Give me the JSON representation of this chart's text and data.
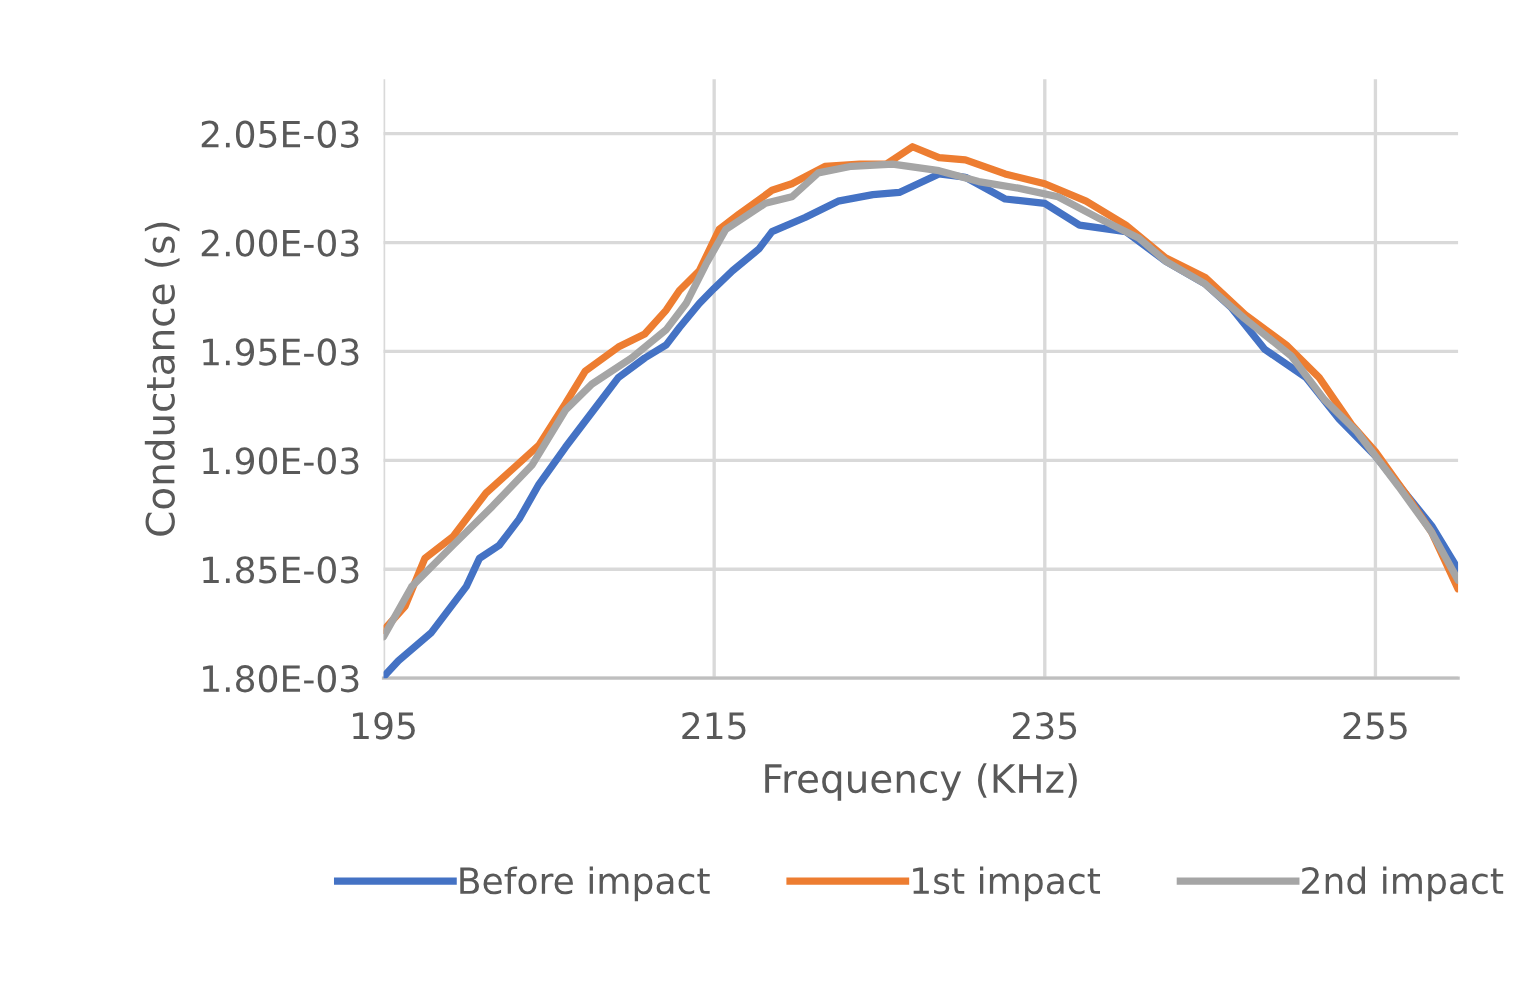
{
  "chart_data": {
    "type": "line",
    "xlabel": "Frequency (KHz)",
    "ylabel": "Conductance (s)",
    "xlim": [
      195,
      260
    ],
    "xticks": [
      195,
      215,
      235,
      255
    ],
    "ylim": [
      0.0018,
      0.002075
    ],
    "yticks": [
      {
        "value": 0.0018,
        "label": "1.80E-03"
      },
      {
        "value": 0.00185,
        "label": "1.85E-03"
      },
      {
        "value": 0.0019,
        "label": "1.90E-03"
      },
      {
        "value": 0.00195,
        "label": "1.95E-03"
      },
      {
        "value": 0.002,
        "label": "2.00E-03"
      },
      {
        "value": 0.00205,
        "label": "2.05E-03"
      }
    ],
    "grid": true,
    "legend": "bottom",
    "marker": "none",
    "line_style": "solid",
    "series": [
      {
        "name": "Before impact",
        "color": "#4472c4",
        "x": [
          195,
          195.9,
          197.9,
          200.0,
          200.8,
          202.0,
          203.2,
          204.4,
          206.0,
          208.0,
          209.2,
          210.8,
          212.1,
          212.9,
          214.1,
          215.0,
          216.1,
          217.7,
          218.5,
          220.5,
          222.5,
          224.6,
          226.2,
          228.6,
          230.2,
          232.6,
          235.0,
          237.1,
          239.9,
          242.3,
          244.7,
          246.3,
          248.3,
          250.8,
          252.8,
          255.0,
          256.8,
          258.4,
          260
        ],
        "values": [
          0.0018006,
          0.001808,
          0.001821,
          0.001842,
          0.001855,
          0.001861,
          0.001873,
          0.001889,
          0.001906,
          0.001926,
          0.001938,
          0.001947,
          0.001953,
          0.001961,
          0.001972,
          0.001979,
          0.001987,
          0.001997,
          0.002005,
          0.0020115,
          0.002019,
          0.002022,
          0.002023,
          0.0020315,
          0.00203,
          0.00202,
          0.002018,
          0.002008,
          0.002005,
          0.0019915,
          0.001981,
          0.00197,
          0.001951,
          0.001938,
          0.001919,
          0.001902,
          0.001885,
          0.00187,
          0.00185
        ]
      },
      {
        "name": "1st impact",
        "color": "#ed7d31",
        "x": [
          195,
          196.3,
          197.5,
          199.2,
          201.2,
          202.8,
          204.4,
          206.0,
          207.2,
          209.2,
          210.8,
          212.1,
          212.9,
          214.1,
          215.3,
          216.5,
          218.5,
          219.7,
          221.7,
          223.8,
          225.4,
          227.0,
          228.6,
          230.2,
          232.6,
          235.0,
          237.5,
          239.9,
          242.3,
          244.7,
          247.1,
          249.6,
          251.6,
          253.6,
          255.0,
          256.8,
          258.4,
          260
        ],
        "values": [
          0.001822,
          0.001833,
          0.001855,
          0.001865,
          0.001885,
          0.001896,
          0.001907,
          0.001926,
          0.001941,
          0.001952,
          0.001958,
          0.001969,
          0.001978,
          0.001987,
          0.002006,
          0.002013,
          0.002024,
          0.002027,
          0.002035,
          0.002036,
          0.002036,
          0.002044,
          0.002039,
          0.002038,
          0.0020315,
          0.002027,
          0.002019,
          0.002008,
          0.001993,
          0.001984,
          0.001967,
          0.001953,
          0.001938,
          0.001916,
          0.001904,
          0.001885,
          0.001867,
          0.001841
        ]
      },
      {
        "name": "2nd impact",
        "color": "#a5a5a5",
        "x": [
          195,
          196.7,
          199.2,
          201.6,
          204.0,
          206.0,
          207.6,
          210.0,
          212.1,
          213.3,
          214.5,
          215.7,
          216.5,
          218.1,
          219.7,
          221.3,
          223.3,
          225.8,
          228.6,
          231.0,
          233.4,
          235.8,
          238.3,
          240.7,
          242.3,
          244.7,
          247.1,
          249.9,
          251.9,
          253.9,
          256.4,
          258.4,
          260
        ],
        "values": [
          0.001819,
          0.001842,
          0.001861,
          0.001879,
          0.001898,
          0.001923,
          0.001935,
          0.001947,
          0.00196,
          0.001972,
          0.00199,
          0.002006,
          0.00201,
          0.002018,
          0.002021,
          0.002032,
          0.002035,
          0.002036,
          0.002033,
          0.002028,
          0.002025,
          0.002021,
          0.002011,
          0.002002,
          0.0019915,
          0.001981,
          0.001965,
          0.001948,
          0.001928,
          0.001913,
          0.001888,
          0.001867,
          0.001845
        ]
      }
    ]
  }
}
